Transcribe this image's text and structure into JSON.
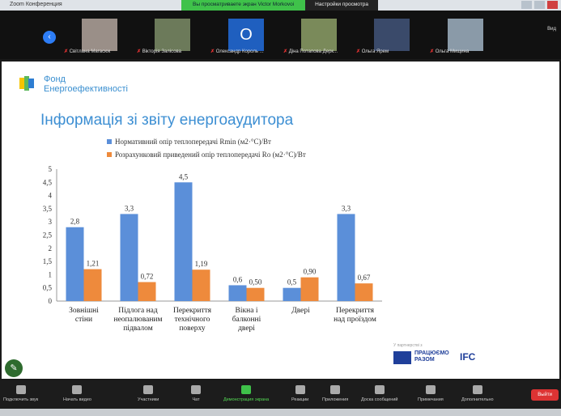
{
  "window": {
    "title": "Zoom Конференция",
    "banner": "Вы просматриваете экран Victor Morkovoi",
    "view_options": "Настройки просмотра"
  },
  "gallery": {
    "participants": [
      {
        "name": "Світлана Магасюк"
      },
      {
        "name": "Вікторія Залісова"
      },
      {
        "name": "Олександр Король ...",
        "initial": "O"
      },
      {
        "name": "Діна Потапова Дерк..."
      },
      {
        "name": "Ольга Ярем"
      },
      {
        "name": "Ольга Мищина"
      }
    ],
    "view_label": "Вид"
  },
  "slide": {
    "logo_text": "Фонд Енергоефективності",
    "title": "Інформація зі звіту енергоаудитора",
    "partners_label": "У партнерстві з",
    "razom": "ПРАЦЮЄМО РАЗОМ",
    "ifc": "IFC"
  },
  "chart_data": {
    "type": "bar",
    "categories": [
      "Зовнішні стіни",
      "Підлога над неопалюваним підвалом",
      "Перекриття технічного поверху",
      "Вікна і балконні двері",
      "Двері",
      "Перекриття над проїздом"
    ],
    "series": [
      {
        "name": "Нормативний опір теплопередачі Rmin (м2·°С)/Вт",
        "color": "#5b8fd9",
        "values": [
          2.8,
          3.3,
          4.5,
          0.6,
          0.5,
          3.3
        ],
        "labels": [
          "2,8",
          "3,3",
          "4,5",
          "0,6",
          "0,5",
          "3,3"
        ]
      },
      {
        "name": "Розрахунковий приведений опір теплопередачі Ro (м2·°С)/Вт",
        "color": "#ee8a3c",
        "values": [
          1.21,
          0.72,
          1.19,
          0.5,
          0.9,
          0.67
        ],
        "labels": [
          "1,21",
          "0,72",
          "1,19",
          "0,50",
          "0,90",
          "0,67"
        ]
      }
    ],
    "ylim": [
      0,
      5
    ],
    "yticks": [
      "0",
      "0,5",
      "1",
      "1,5",
      "2",
      "2,5",
      "3",
      "3,5",
      "4",
      "4,5",
      "5"
    ],
    "legend": "top",
    "grid": false
  },
  "toolbar": {
    "items": [
      "Подключить звук",
      "Начать видео",
      "Участники",
      "Чат",
      "Демонстрация экрана",
      "Реакции",
      "Приложения",
      "Доска сообщений",
      "Примечания",
      "Дополнительно"
    ],
    "leave": "Выйти"
  }
}
